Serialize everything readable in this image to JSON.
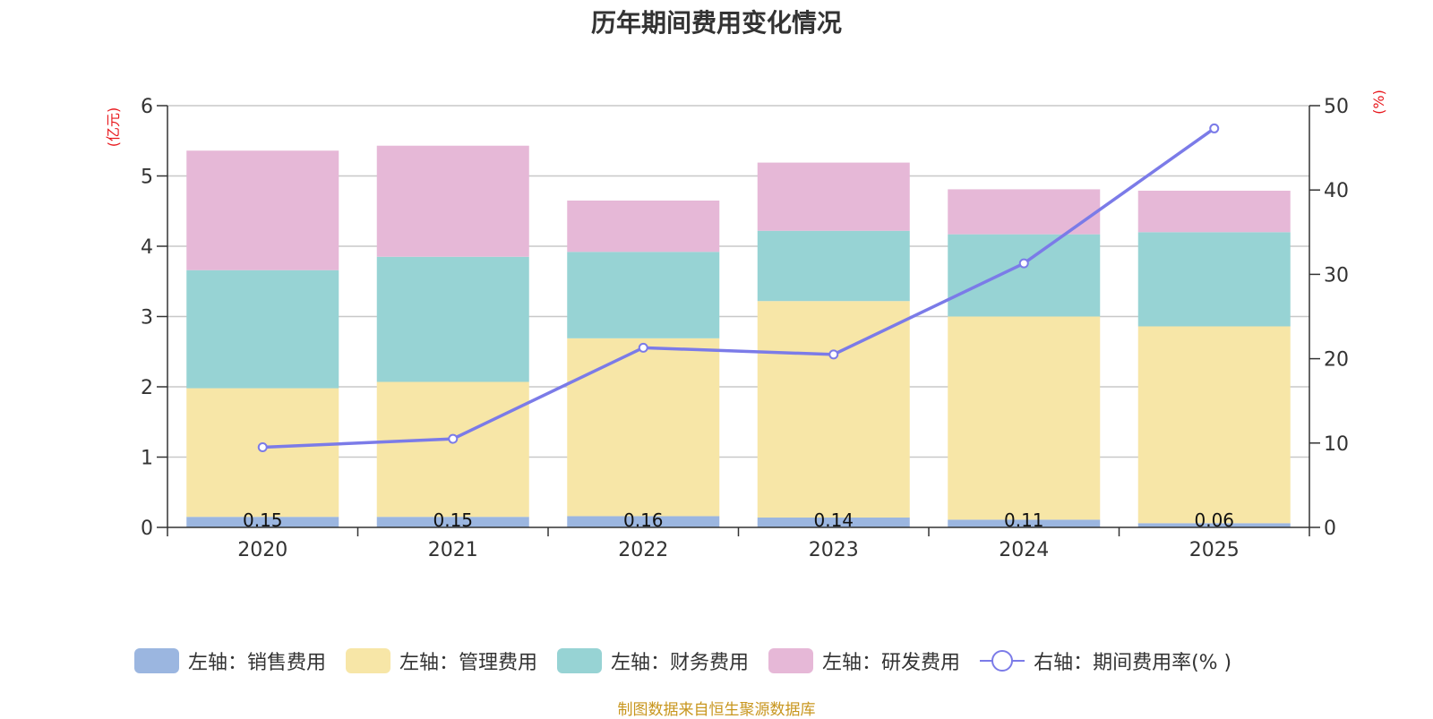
{
  "chart_data": {
    "type": "bar",
    "title": "历年期间费用变化情况",
    "categories": [
      "2020",
      "2021",
      "2022",
      "2023",
      "2024",
      "2025"
    ],
    "stacked": true,
    "left_axis": {
      "unit_label": "(亿元)",
      "ylim": [
        0,
        6
      ],
      "ticks": [
        0,
        1,
        2,
        3,
        4,
        5,
        6
      ]
    },
    "right_axis": {
      "unit_label": "(%)",
      "ylim": [
        0,
        50
      ],
      "ticks": [
        0,
        10,
        20,
        30,
        40,
        50
      ]
    },
    "series": [
      {
        "name": "左轴：销售费用",
        "axis": "left",
        "type": "bar",
        "color": "#9bb6e0",
        "values": [
          0.15,
          0.15,
          0.16,
          0.14,
          0.11,
          0.06
        ],
        "show_labels": true,
        "labels": [
          "0.15",
          "0.15",
          "0.16",
          "0.14",
          "0.11",
          "0.06"
        ]
      },
      {
        "name": "左轴：管理费用",
        "axis": "left",
        "type": "bar",
        "color": "#f7e6a7",
        "values": [
          1.83,
          1.92,
          2.53,
          3.08,
          2.89,
          2.8
        ]
      },
      {
        "name": "左轴：财务费用",
        "axis": "left",
        "type": "bar",
        "color": "#97d3d4",
        "values": [
          1.68,
          1.78,
          1.23,
          1.0,
          1.17,
          1.34
        ]
      },
      {
        "name": "左轴：研发费用",
        "axis": "left",
        "type": "bar",
        "color": "#e6b8d7",
        "values": [
          1.7,
          1.58,
          0.73,
          0.97,
          0.64,
          0.59
        ]
      },
      {
        "name": "右轴：期间费用率(% )",
        "axis": "right",
        "type": "line",
        "color": "#7b7be8",
        "values": [
          9.5,
          10.5,
          21.3,
          20.5,
          31.3,
          47.3
        ]
      }
    ],
    "grid": true,
    "legend_position": "bottom"
  },
  "source_note": "制图数据来自恒生聚源数据库"
}
